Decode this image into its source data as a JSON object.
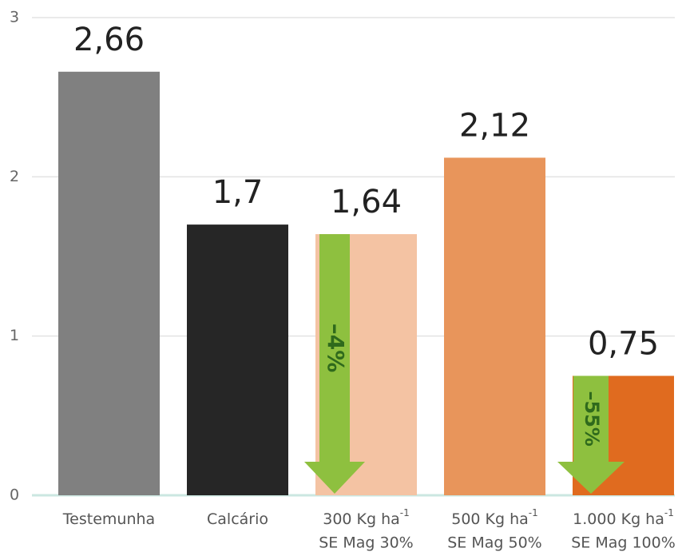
{
  "chart_data": {
    "type": "bar",
    "categories": [
      {
        "line1": "Testemunha"
      },
      {
        "line1": "Calcário"
      },
      {
        "line1": "300 Kg ha",
        "sup": "-1",
        "line2": "SE Mag 30%"
      },
      {
        "line1": "500 Kg ha",
        "sup": "-1",
        "line2": "SE Mag 50%"
      },
      {
        "line1": "1.000 Kg ha",
        "sup": "-1",
        "line2": "SE Mag 100%"
      }
    ],
    "values": [
      2.66,
      1.7,
      1.64,
      2.12,
      0.75
    ],
    "value_labels": [
      "2,66",
      "1,7",
      "1,64",
      "2,12",
      "0,75"
    ],
    "colors": [
      "#808080",
      "#262626",
      "#f4c3a3",
      "#e8955b",
      "#e06b1f"
    ],
    "ylim": [
      0,
      3
    ],
    "yticks": [
      0,
      1,
      2,
      3
    ],
    "grid": true,
    "annotations": [
      "–4%",
      "–55%"
    ]
  }
}
